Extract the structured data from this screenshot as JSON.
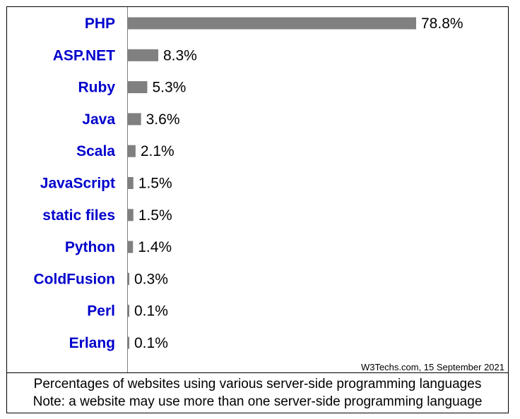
{
  "chart_data": {
    "type": "bar",
    "orientation": "horizontal",
    "categories": [
      "PHP",
      "ASP.NET",
      "Ruby",
      "Java",
      "Scala",
      "JavaScript",
      "static files",
      "Python",
      "ColdFusion",
      "Perl",
      "Erlang"
    ],
    "values": [
      78.8,
      8.3,
      5.3,
      3.6,
      2.1,
      1.5,
      1.5,
      1.4,
      0.3,
      0.1,
      0.1
    ],
    "value_labels": [
      "78.8%",
      "8.3%",
      "5.3%",
      "3.6%",
      "2.1%",
      "1.5%",
      "1.5%",
      "1.4%",
      "0.3%",
      "0.1%",
      "0.1%"
    ],
    "title": "",
    "xlabel": "",
    "ylabel": "",
    "xlim": [
      0,
      100
    ],
    "grid": false,
    "colors": {
      "bar": "#808080",
      "category_text": "#0000cc",
      "value_text": "#000000",
      "axis": "#808080"
    }
  },
  "source": "W3Techs.com, 15 September 2021",
  "caption": {
    "line1": "Percentages of websites using various server-side programming languages",
    "line2": "Note: a website may use more than one server-side programming language"
  }
}
